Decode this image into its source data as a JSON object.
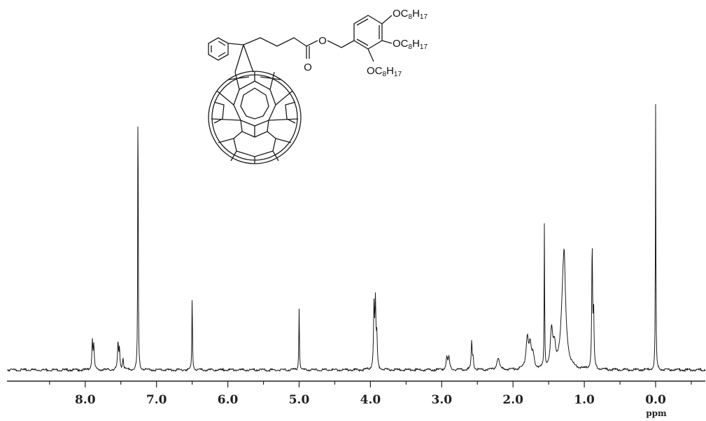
{
  "chart_data": {
    "type": "line",
    "title": "",
    "xlabel": "ppm",
    "ylabel": "",
    "x_reversed": true,
    "xlim": [
      8.8,
      -0.5
    ],
    "ylim": [
      0,
      1.0
    ],
    "grid": false,
    "legend": "none",
    "x_ticks": [
      8.0,
      7.0,
      6.0,
      5.0,
      4.0,
      3.0,
      2.0,
      1.0,
      0.0
    ],
    "x_tick_labels": [
      "8.0",
      "7.0",
      "6.0",
      "5.0",
      "4.0",
      "3.0",
      "2.0",
      "1.0",
      "0.0"
    ],
    "peaks": [
      {
        "ppm": 7.9,
        "height": 0.095,
        "width": 0.008
      },
      {
        "ppm": 7.88,
        "height": 0.075,
        "width": 0.008
      },
      {
        "ppm": 7.54,
        "height": 0.085,
        "width": 0.008
      },
      {
        "ppm": 7.52,
        "height": 0.065,
        "width": 0.008
      },
      {
        "ppm": 7.47,
        "height": 0.04,
        "width": 0.008
      },
      {
        "ppm": 7.26,
        "height": 1.0,
        "width": 0.004
      },
      {
        "ppm": 6.5,
        "height": 0.245,
        "width": 0.005
      },
      {
        "ppm": 5.0,
        "height": 0.205,
        "width": 0.005
      },
      {
        "ppm": 3.95,
        "height": 0.2,
        "width": 0.008
      },
      {
        "ppm": 3.93,
        "height": 0.21,
        "width": 0.008
      },
      {
        "ppm": 3.91,
        "height": 0.1,
        "width": 0.008
      },
      {
        "ppm": 2.93,
        "height": 0.04,
        "width": 0.012
      },
      {
        "ppm": 2.9,
        "height": 0.04,
        "width": 0.012
      },
      {
        "ppm": 2.58,
        "height": 0.09,
        "width": 0.008
      },
      {
        "ppm": 2.56,
        "height": 0.04,
        "width": 0.008
      },
      {
        "ppm": 2.21,
        "height": 0.04,
        "width": 0.02
      },
      {
        "ppm": 1.8,
        "height": 0.1,
        "width": 0.02
      },
      {
        "ppm": 1.76,
        "height": 0.07,
        "width": 0.02
      },
      {
        "ppm": 1.72,
        "height": 0.04,
        "width": 0.02
      },
      {
        "ppm": 1.56,
        "height": 0.47,
        "width": 0.004
      },
      {
        "ppm": 1.46,
        "height": 0.12,
        "width": 0.02
      },
      {
        "ppm": 1.42,
        "height": 0.06,
        "width": 0.02
      },
      {
        "ppm": 1.29,
        "height": 0.33,
        "width": 0.035
      },
      {
        "ppm": 1.28,
        "height": 0.08,
        "width": 0.012
      },
      {
        "ppm": 0.89,
        "height": 0.4,
        "width": 0.007
      },
      {
        "ppm": 0.87,
        "height": 0.18,
        "width": 0.007
      },
      {
        "ppm": 0.0,
        "height": 0.87,
        "width": 0.004
      }
    ]
  },
  "structure": {
    "substituents": [
      {
        "prefix": "OC",
        "sub1": "8",
        "mid": "H",
        "sub2": "17"
      },
      {
        "prefix": "OC",
        "sub1": "8",
        "mid": "H",
        "sub2": "17"
      },
      {
        "prefix": "OC",
        "sub1": "8",
        "mid": "H",
        "sub2": "17"
      }
    ],
    "atoms": [
      {
        "symbol": "O"
      },
      {
        "symbol": "O"
      }
    ]
  }
}
